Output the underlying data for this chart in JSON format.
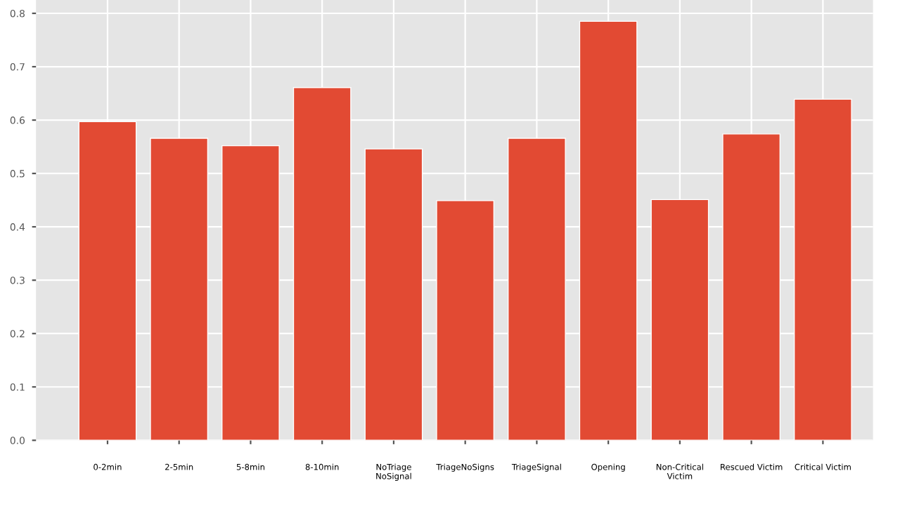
{
  "chart_data": {
    "type": "bar",
    "categories": [
      "0-2min",
      "2-5min",
      "5-8min",
      "8-10min",
      "NoTriage\nNoSignal",
      "TriageNoSigns",
      "TriageSignal",
      "Opening",
      "Non-Critical\nVictim",
      "Rescued Victim",
      "Critical Victim"
    ],
    "values": [
      0.597,
      0.566,
      0.552,
      0.661,
      0.546,
      0.449,
      0.566,
      0.785,
      0.451,
      0.574,
      0.639
    ],
    "color": "#e24a33",
    "ylim": [
      0,
      0.825
    ],
    "yticks": [
      {
        "value": 0,
        "label": "0.0"
      },
      0.1,
      0.2,
      0.3,
      0.4,
      0.5,
      0.6,
      0.7,
      0.8
    ],
    "grid": true
  }
}
